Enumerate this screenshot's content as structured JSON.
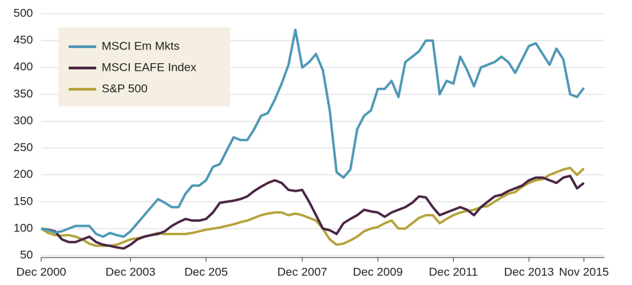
{
  "chart_data": {
    "type": "line",
    "categories": [
      "Dec 2000",
      null,
      null,
      null,
      null,
      null,
      null,
      null,
      null,
      null,
      null,
      null,
      null,
      "Dec 2003",
      null,
      null,
      null,
      null,
      null,
      null,
      null,
      null,
      null,
      null,
      "Dec 205",
      null,
      null,
      null,
      null,
      null,
      null,
      null,
      null,
      null,
      null,
      null,
      null,
      null,
      "Dec 2007",
      null,
      null,
      null,
      null,
      null,
      null,
      null,
      null,
      null,
      null,
      "Dec 2009",
      null,
      null,
      null,
      null,
      null,
      null,
      null,
      null,
      null,
      null,
      "Dec 2011",
      null,
      null,
      null,
      null,
      null,
      null,
      null,
      null,
      null,
      null,
      "Dec 2013",
      null,
      null,
      null,
      null,
      null,
      null,
      null,
      "Nov 2015"
    ],
    "series": [
      {
        "name": "MSCI Em Mkts",
        "color": "#4e98b5",
        "values": [
          100,
          97,
          93,
          95,
          100,
          105,
          105,
          105,
          90,
          85,
          92,
          88,
          85,
          95,
          110,
          125,
          140,
          155,
          148,
          140,
          140,
          165,
          180,
          180,
          190,
          215,
          220,
          245,
          270,
          265,
          265,
          285,
          310,
          315,
          340,
          370,
          405,
          470,
          400,
          410,
          425,
          395,
          320,
          205,
          195,
          210,
          285,
          310,
          320,
          360,
          360,
          375,
          345,
          410,
          420,
          430,
          450,
          450,
          350,
          375,
          370,
          420,
          395,
          365,
          400,
          405,
          410,
          420,
          410,
          390,
          415,
          440,
          445,
          425,
          405,
          435,
          415,
          350,
          345,
          362
        ]
      },
      {
        "name": "MSCI EAFE Index",
        "color": "#4a2545",
        "values": [
          100,
          98,
          95,
          80,
          75,
          75,
          80,
          85,
          75,
          70,
          68,
          65,
          63,
          70,
          80,
          85,
          88,
          90,
          95,
          105,
          112,
          118,
          115,
          115,
          118,
          130,
          148,
          150,
          152,
          155,
          160,
          170,
          178,
          185,
          190,
          185,
          172,
          170,
          172,
          150,
          125,
          100,
          97,
          90,
          110,
          118,
          125,
          135,
          132,
          130,
          122,
          130,
          135,
          140,
          148,
          160,
          158,
          140,
          125,
          130,
          135,
          140,
          135,
          125,
          140,
          150,
          160,
          163,
          170,
          175,
          180,
          190,
          195,
          195,
          190,
          185,
          195,
          198,
          175,
          185
        ]
      },
      {
        "name": "S&P 500",
        "color": "#b5a33a",
        "values": [
          100,
          92,
          88,
          87,
          88,
          85,
          80,
          72,
          68,
          68,
          68,
          70,
          75,
          80,
          82,
          85,
          88,
          92,
          90,
          90,
          90,
          90,
          92,
          95,
          98,
          100,
          102,
          105,
          108,
          112,
          115,
          120,
          125,
          128,
          130,
          130,
          125,
          128,
          125,
          120,
          115,
          100,
          80,
          70,
          72,
          78,
          85,
          95,
          100,
          103,
          110,
          115,
          100,
          100,
          110,
          120,
          125,
          125,
          110,
          118,
          125,
          130,
          133,
          135,
          140,
          142,
          150,
          158,
          165,
          168,
          178,
          185,
          190,
          192,
          200,
          205,
          210,
          213,
          200,
          212
        ]
      }
    ],
    "ylim": [
      50,
      500
    ],
    "yticks": [
      50,
      100,
      150,
      200,
      250,
      300,
      350,
      400,
      450,
      500
    ],
    "grid": true,
    "legend": "upper left"
  }
}
